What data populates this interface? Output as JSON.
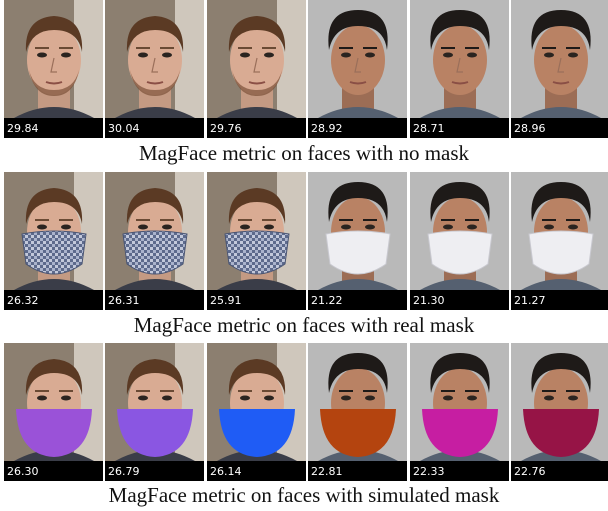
{
  "rows": [
    {
      "scores": [
        "29.84",
        "30.04",
        "29.76",
        "28.92",
        "28.71",
        "28.96"
      ],
      "caption": "MagFace metric on faces with no mask"
    },
    {
      "scores": [
        "26.32",
        "26.31",
        "25.91",
        "21.22",
        "21.30",
        "21.27"
      ],
      "caption": "MagFace metric on faces with real mask"
    },
    {
      "scores": [
        "26.30",
        "26.79",
        "26.14",
        "22.81",
        "22.33",
        "22.76"
      ],
      "caption": "MagFace metric on faces with simulated mask"
    }
  ]
}
